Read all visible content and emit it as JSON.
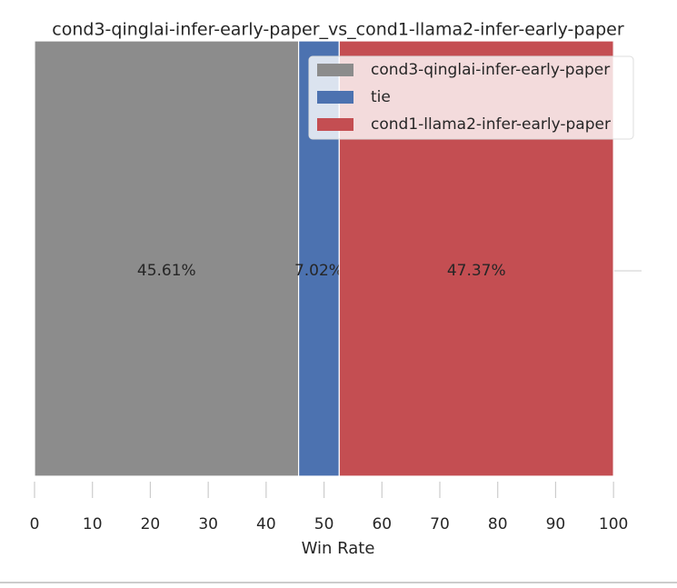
{
  "chart_data": {
    "type": "stacked-barh",
    "title": "cond3-qinglai-infer-early-paper_vs_cond1-llama2-infer-early-paper",
    "x_label": "Win Rate",
    "categories": [
      null
    ],
    "series": [
      {
        "name": "cond3-qinglai-infer-early-paper",
        "color": "#8c8c8c",
        "values": [
          45.61
        ],
        "value_labels": [
          "45.61%"
        ]
      },
      {
        "name": "tie",
        "color": "#4c72b0",
        "values": [
          7.02
        ],
        "value_labels": [
          "7.02%"
        ]
      },
      {
        "name": "cond1-llama2-infer-early-paper",
        "color": "#c44e52",
        "values": [
          47.37
        ],
        "value_labels": [
          "47.37%"
        ]
      }
    ],
    "xlim": [
      0,
      105
    ],
    "xticks": [
      0,
      10,
      20,
      30,
      40,
      50,
      60,
      70,
      80,
      90,
      100
    ],
    "legend": "upper right"
  }
}
